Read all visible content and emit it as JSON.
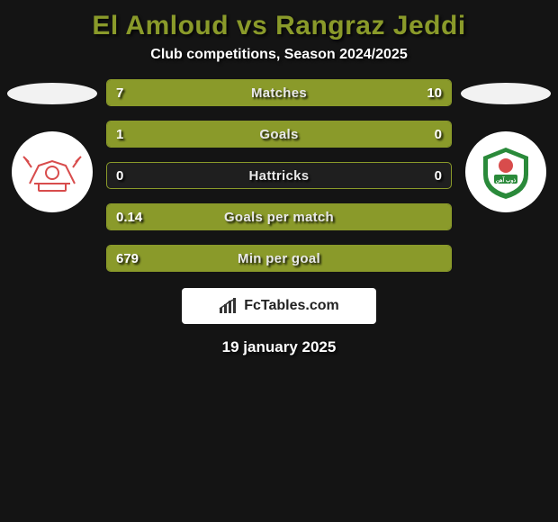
{
  "title": "El Amloud vs Rangraz Jeddi",
  "subtitle": "Club competitions, Season 2024/2025",
  "date": "19 january 2025",
  "brand": "FcTables.com",
  "colors": {
    "background": "#141414",
    "accent": "#8a9a2a",
    "text_light": "#ffffff",
    "brand_box_bg": "#ffffff",
    "flag_bg": "#f2f2f2",
    "logo_bg": "#ffffff"
  },
  "left_team": {
    "flag_name": "flag-left",
    "logo_name": "logo-left",
    "logo_primary_color": "#d84c4c"
  },
  "right_team": {
    "flag_name": "flag-right",
    "logo_name": "logo-right",
    "logo_primary_color": "#2a8a3a"
  },
  "stats": [
    {
      "label": "Matches",
      "left_value": "7",
      "right_value": "10",
      "left_pct": 41,
      "right_pct": 59
    },
    {
      "label": "Goals",
      "left_value": "1",
      "right_value": "0",
      "left_pct": 80,
      "right_pct": 20
    },
    {
      "label": "Hattricks",
      "left_value": "0",
      "right_value": "0",
      "left_pct": 0,
      "right_pct": 0
    },
    {
      "label": "Goals per match",
      "left_value": "0.14",
      "right_value": "",
      "left_pct": 100,
      "right_pct": 0
    },
    {
      "label": "Min per goal",
      "left_value": "679",
      "right_value": "",
      "left_pct": 100,
      "right_pct": 0
    }
  ]
}
